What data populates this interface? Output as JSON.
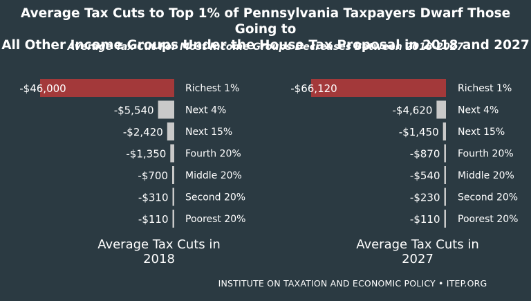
{
  "title_line1": "Average Tax Cuts to Top 1% of Pennsylvania Taxpayers Dwarf Those Going to",
  "title_line2": "All Other Income Groups Under the House Tax Proposal in 2018 and 2027",
  "subtitle": "Average Tax Cut For Most Income Groups Decreases Between 2018-2027",
  "footer": "INSTITUTE ON TAXATION AND ECONOMIC POLICY • ITEP.ORG",
  "colors": {
    "top_bar": "#a3393a",
    "other_bars": "#c9c9c9",
    "background": "#2b3a42",
    "text": "#ffffff"
  },
  "chart_data": [
    {
      "type": "bar",
      "orientation": "horizontal",
      "categories": [
        "Richest 1%",
        "Next 4%",
        "Next 15%",
        "Fourth 20%",
        "Middle 20%",
        "Second 20%",
        "Poorest 20%"
      ],
      "values": [
        -46000,
        -5540,
        -2420,
        -1350,
        -700,
        -310,
        -110
      ],
      "value_labels": [
        "-$46,000",
        "-$5,540",
        "-$2,420",
        "-$1,350",
        "-$700",
        "-$310",
        "-$110"
      ],
      "xlabel_line1": "Average Tax Cuts in",
      "xlabel_line2": "2018",
      "xlim": [
        -46000,
        0
      ]
    },
    {
      "type": "bar",
      "orientation": "horizontal",
      "categories": [
        "Richest 1%",
        "Next 4%",
        "Next 15%",
        "Fourth 20%",
        "Middle 20%",
        "Second 20%",
        "Poorest 20%"
      ],
      "values": [
        -66120,
        -4620,
        -1450,
        -870,
        -540,
        -230,
        -110
      ],
      "value_labels": [
        "-$66,120",
        "-$4,620",
        "-$1,450",
        "-$870",
        "-$540",
        "-$230",
        "-$110"
      ],
      "xlabel_line1": "Average Tax Cuts in",
      "xlabel_line2": "2027",
      "xlim": [
        -66120,
        0
      ]
    }
  ]
}
